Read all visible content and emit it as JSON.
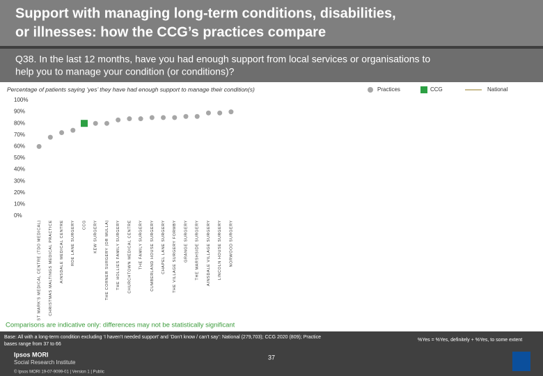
{
  "slide": {
    "title": [
      "Support with managing long-term conditions, disabilities,",
      "or illnesses: how the CCG’s practices compare"
    ],
    "question": [
      "Q38. In the last 12 months, have you had enough support from local services or organisations to",
      "help you to manage your condition (or conditions)?"
    ],
    "note": "Comparisons are indicative only: differences may not be statistically significant",
    "base": [
      "Base: All with a long-term condition excluding ‘I haven’t needed support’ and ‘Don’t know / can’t say’: National (279,703); CCG 2020 (809); Practice",
      "bases range from 37 to 66"
    ],
    "definition": "%Yes = %Yes, definitely + %Yes, to some extent",
    "page": "37",
    "logo": [
      "Ipsos MORI",
      "Social Research Institute"
    ],
    "footer": "© Ipsos MORI     19-07-9099-01 | Version 1 | Public"
  },
  "chart_data": {
    "type": "dot",
    "subtitle": "Percentage of patients saying ‘yes’ they have had enough support to manage their condition(s)",
    "categories": [
      "ST MARK'S MEDICAL CENTRE (TDO MEDICAL)",
      "CHRISTMAS MALTINGS MEDICAL PRACTICE",
      "AINSDALE MEDICAL CENTRE",
      "ROE LANE SURGERY",
      "CCG",
      "KEW SURGERY",
      "THE CORNER SURGERY (DR MULLA)",
      "THE HOLLIES FAMILY SURGERY",
      "CHURCHTOWN MEDICAL CENTRE",
      "THE FAMILY SURGERY",
      "CUMBERLAND HOUSE SURGERY",
      "CHAPEL LANE SURGERY",
      "THE VILLAGE SURGERY FORMBY",
      "GRANGE SURGERY",
      "THE MARSHSIDE SURGERY",
      "AINSDALE VILLAGE SURGERY",
      "LINCOLN HOUSE SURGERY",
      "NORWOOD SURGERY"
    ],
    "series": [
      {
        "name": "Practices",
        "color": "#a6a6a6",
        "marker": "circle",
        "values": [
          60,
          68,
          72,
          74,
          null,
          80,
          80,
          83,
          84,
          84,
          85,
          85,
          85,
          86,
          86,
          89,
          89,
          90
        ]
      },
      {
        "name": "CCG",
        "color": "#2ca043",
        "marker": "square",
        "values": [
          null,
          null,
          null,
          null,
          80,
          null,
          null,
          null,
          null,
          null,
          null,
          null,
          null,
          null,
          null,
          null,
          null,
          null
        ]
      },
      {
        "name": "National",
        "color": "#c9bc8f",
        "marker": "line",
        "values": [
          null,
          null,
          null,
          null,
          null,
          null,
          null,
          null,
          null,
          null,
          null,
          null,
          null,
          null,
          null,
          null,
          null,
          null
        ]
      }
    ],
    "ylim": [
      0,
      100
    ],
    "yticks": [
      {
        "value": 0,
        "label": "0%"
      },
      {
        "value": 10,
        "label": "10%"
      },
      {
        "value": 20,
        "label": "20%"
      },
      {
        "value": 30,
        "label": "30%"
      },
      {
        "value": 40,
        "label": "40%"
      },
      {
        "value": 50,
        "label": "50%"
      },
      {
        "value": 60,
        "label": "60%"
      },
      {
        "value": 70,
        "label": "70%"
      },
      {
        "value": 80,
        "label": "80%"
      },
      {
        "value": 90,
        "label": "90%"
      },
      {
        "value": 100,
        "label": "100%"
      }
    ],
    "grid": false
  }
}
